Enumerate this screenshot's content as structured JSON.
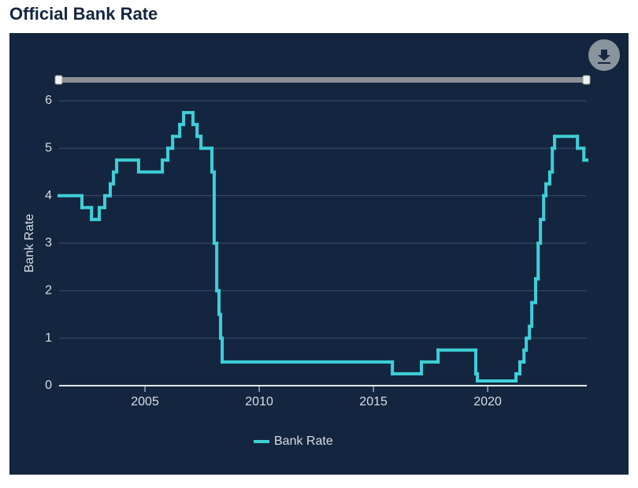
{
  "chart_data": {
    "type": "step",
    "title": "Official Bank Rate",
    "y_label": "Bank Rate",
    "x": [
      2001.24,
      2002.24,
      2002.66,
      2003.0,
      2003.24,
      2003.48,
      2003.62,
      2003.76,
      2004.72,
      2005.76,
      2006.0,
      2006.21,
      2006.52,
      2006.69,
      2007.1,
      2007.28,
      2007.45,
      2007.93,
      2008.03,
      2008.14,
      2008.24,
      2008.31,
      2008.38,
      2015.83,
      2017.1,
      2017.83,
      2019.48,
      2019.55,
      2021.24,
      2021.41,
      2021.59,
      2021.69,
      2021.83,
      2021.93,
      2022.1,
      2022.21,
      2022.31,
      2022.45,
      2022.55,
      2022.72,
      2022.83,
      2022.93,
      2023.93,
      2024.21,
      2024.34
    ],
    "series": [
      {
        "name": "Bank Rate",
        "color": "#3ecfd8",
        "values": [
          4.0,
          3.75,
          3.5,
          3.75,
          4.0,
          4.25,
          4.5,
          4.75,
          4.5,
          4.75,
          5.0,
          5.25,
          5.5,
          5.75,
          5.5,
          5.25,
          5.0,
          4.5,
          3.0,
          2.0,
          1.5,
          1.0,
          0.5,
          0.25,
          0.5,
          0.75,
          0.25,
          0.1,
          0.25,
          0.5,
          0.75,
          1.0,
          1.25,
          1.75,
          2.25,
          3.0,
          3.5,
          4.0,
          4.25,
          4.5,
          5.0,
          5.25,
          5.0,
          4.75,
          4.75
        ]
      }
    ],
    "xlim": [
      2001.24,
      2024.34
    ],
    "xticks": [
      2005,
      2010,
      2015,
      2020
    ],
    "ylim": [
      0,
      6
    ],
    "yticks": [
      0,
      1,
      2,
      3,
      4,
      5,
      6
    ],
    "grid": true
  }
}
